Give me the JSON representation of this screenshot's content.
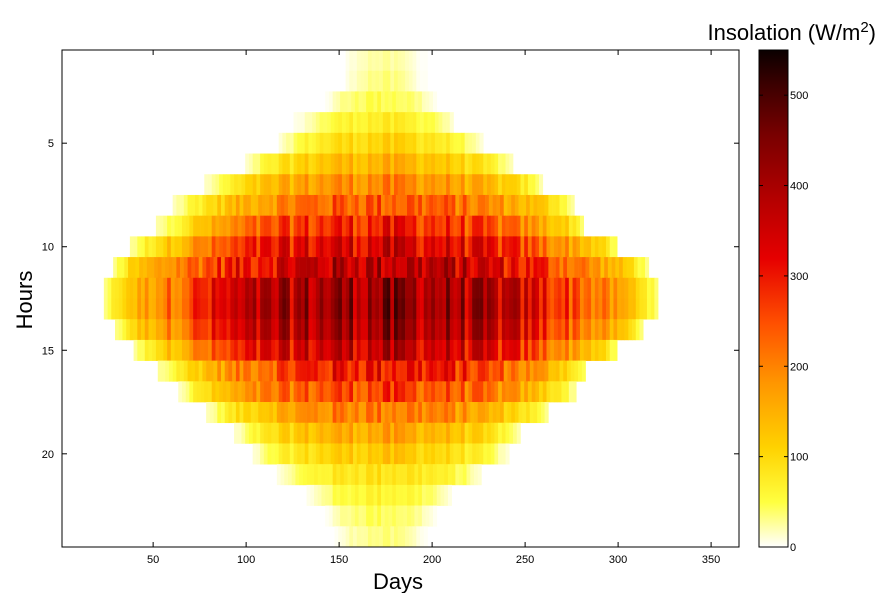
{
  "chart_data": {
    "type": "heatmap",
    "xlabel": "Days",
    "ylabel": "Hours",
    "colorbar_label": "Insolation (W/m",
    "colorbar_label_sup": "2",
    "colorbar_label_end": ")",
    "colormap": "hot (reversed: white = 0, black = max)",
    "xlim": [
      1,
      365
    ],
    "ylim": [
      0.5,
      24.5
    ],
    "y_axis_direction": "top-to-bottom",
    "xticks": [
      50,
      100,
      150,
      200,
      250,
      300,
      350
    ],
    "yticks": [
      5,
      10,
      15,
      20
    ],
    "colorbar_range": [
      0,
      550
    ],
    "colorbar_ticks": [
      0,
      100,
      200,
      300,
      400,
      500
    ],
    "grid": false,
    "peak_day": 172,
    "peak_hour": 13,
    "profile_hours": [
      1,
      2,
      3,
      4,
      5,
      6,
      7,
      8,
      9,
      10,
      11,
      12,
      13,
      14,
      15,
      16,
      17,
      18,
      19,
      20,
      21,
      22,
      23,
      24
    ],
    "daylight_days_by_hour": [
      [
        154,
        196
      ],
      [
        154,
        196
      ],
      [
        143,
        201
      ],
      [
        126,
        210
      ],
      [
        118,
        226
      ],
      [
        100,
        243
      ],
      [
        78,
        258
      ],
      [
        61,
        275
      ],
      [
        52,
        281
      ],
      [
        38,
        298
      ],
      [
        29,
        315
      ],
      [
        24,
        320
      ],
      [
        24,
        320
      ],
      [
        30,
        313
      ],
      [
        40,
        298
      ],
      [
        53,
        281
      ],
      [
        64,
        276
      ],
      [
        79,
        262
      ],
      [
        94,
        246
      ],
      [
        104,
        240
      ],
      [
        117,
        226
      ],
      [
        133,
        209
      ],
      [
        143,
        201
      ],
      [
        148,
        196
      ]
    ],
    "peak_insolation_by_hour": [
      30,
      40,
      60,
      90,
      130,
      180,
      240,
      300,
      360,
      420,
      470,
      510,
      520,
      500,
      450,
      380,
      320,
      260,
      200,
      150,
      110,
      80,
      55,
      40
    ]
  }
}
